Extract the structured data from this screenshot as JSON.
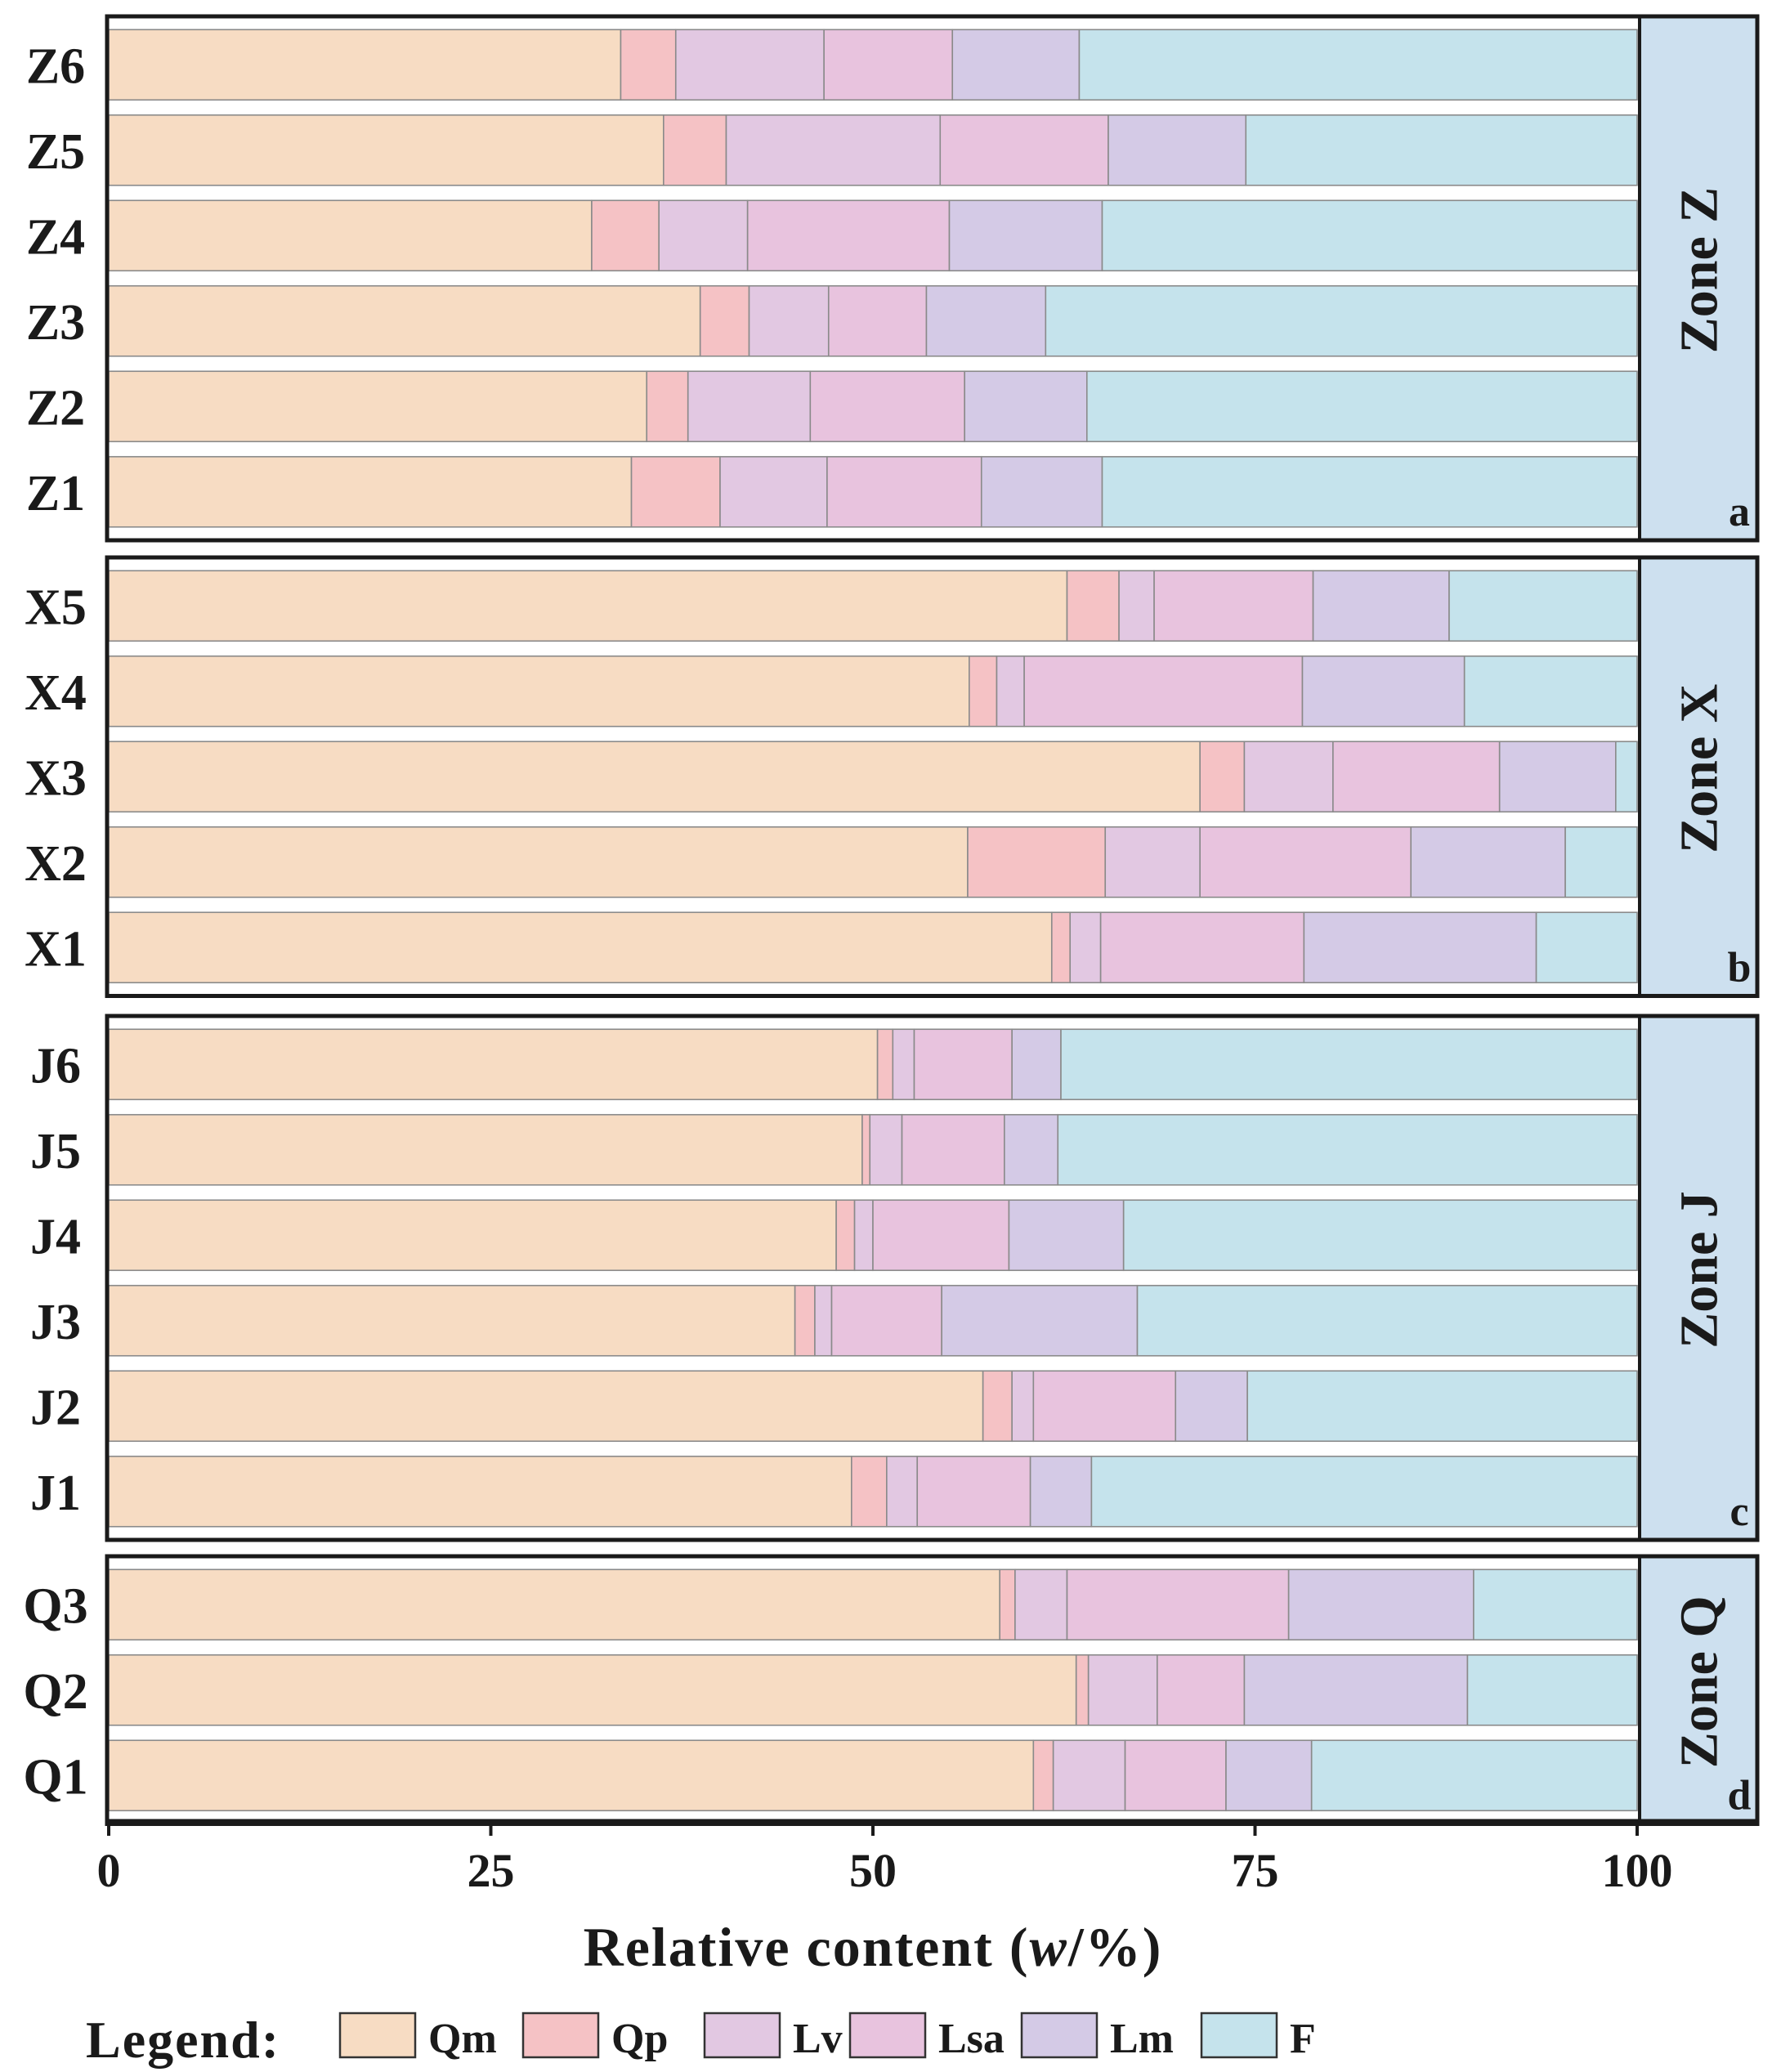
{
  "chart_data": {
    "type": "bar",
    "orientation": "horizontal",
    "stacked": true,
    "xlabel_main": "Relative content (",
    "xlabel_italic": "w",
    "xlabel_end": "/%)",
    "xlim": [
      0,
      100
    ],
    "xticks": [
      0,
      25,
      50,
      75,
      100
    ],
    "legend_title": "Legend:",
    "series": [
      {
        "name": "Qm",
        "color": "#f7dcc3"
      },
      {
        "name": "Qp",
        "color": "#f5c2c5"
      },
      {
        "name": "Lv",
        "color": "#e2c8e2"
      },
      {
        "name": "Lsa",
        "color": "#e8c3de"
      },
      {
        "name": "Lm",
        "color": "#d4cae6"
      },
      {
        "name": "F",
        "color": "#c5e3ec"
      }
    ],
    "panels": [
      {
        "zone": "Zone Z",
        "letter": "a",
        "categories": [
          "Z6",
          "Z5",
          "Z4",
          "Z3",
          "Z2",
          "Z1"
        ],
        "values": [
          [
            33.5,
            3.6,
            9.7,
            8.4,
            8.3,
            36.5
          ],
          [
            36.3,
            4.1,
            14.0,
            11.0,
            9.0,
            25.6
          ],
          [
            31.6,
            4.4,
            5.8,
            13.2,
            10.0,
            35.0
          ],
          [
            38.7,
            3.2,
            5.2,
            6.4,
            7.8,
            38.7
          ],
          [
            35.2,
            2.7,
            8.0,
            10.1,
            8.0,
            36.0
          ],
          [
            34.2,
            5.8,
            7.0,
            10.1,
            7.9,
            35.0
          ]
        ]
      },
      {
        "zone": "Zone X",
        "letter": "b",
        "categories": [
          "X5",
          "X4",
          "X3",
          "X2",
          "X1"
        ],
        "values": [
          [
            62.7,
            3.4,
            2.3,
            10.4,
            8.9,
            12.3
          ],
          [
            56.3,
            1.8,
            1.8,
            18.2,
            10.6,
            11.3
          ],
          [
            71.4,
            2.9,
            5.8,
            10.9,
            7.6,
            1.4
          ],
          [
            56.2,
            9.0,
            6.2,
            13.8,
            10.1,
            4.7
          ],
          [
            61.7,
            1.2,
            2.0,
            13.3,
            15.2,
            6.6
          ]
        ]
      },
      {
        "zone": "Zone J",
        "letter": "c",
        "categories": [
          "J6",
          "J5",
          "J4",
          "J3",
          "J2",
          "J1"
        ],
        "values": [
          [
            50.3,
            1.0,
            1.4,
            6.4,
            3.2,
            37.7
          ],
          [
            49.3,
            0.5,
            2.1,
            6.7,
            3.5,
            37.9
          ],
          [
            47.6,
            1.2,
            1.2,
            8.9,
            7.5,
            33.6
          ],
          [
            44.9,
            1.3,
            1.1,
            7.2,
            12.8,
            32.7
          ],
          [
            57.2,
            1.9,
            1.4,
            9.3,
            4.7,
            25.5
          ],
          [
            48.6,
            2.3,
            2.0,
            7.4,
            4.0,
            35.7
          ]
        ]
      },
      {
        "zone": "Zone Q",
        "letter": "d",
        "categories": [
          "Q3",
          "Q2",
          "Q1"
        ],
        "values": [
          [
            58.3,
            1.0,
            3.4,
            14.5,
            12.1,
            10.7
          ],
          [
            63.3,
            0.8,
            4.5,
            5.7,
            14.6,
            11.1
          ],
          [
            60.5,
            1.3,
            4.7,
            6.6,
            5.6,
            21.3
          ]
        ]
      }
    ]
  }
}
